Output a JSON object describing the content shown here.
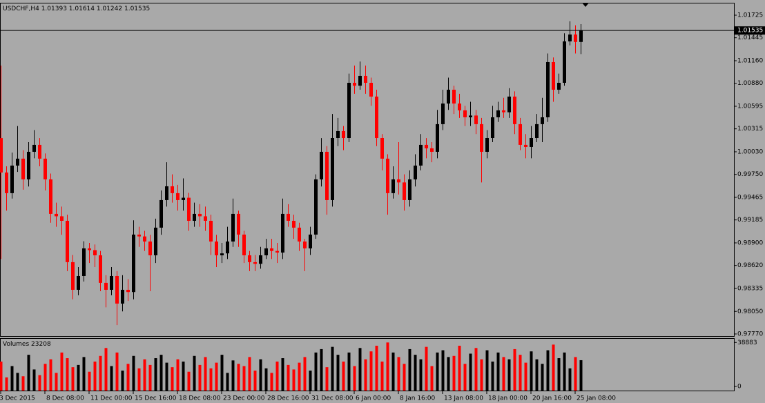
{
  "chart_data": [
    {
      "type": "candlestick",
      "title": "USDCHF,H4",
      "up_color": "#000000",
      "down_color": "#ff0000",
      "open": [
        1.002,
        0.99773,
        0.99517,
        0.99859,
        0.99945,
        0.99688,
        1.0003,
        1.00116,
        0.99945,
        0.99688,
        0.9926,
        0.9923,
        0.99174,
        0.98661,
        0.98318,
        0.98489,
        0.98832,
        0.9881,
        0.98746,
        0.98404,
        0.98318,
        0.98489,
        0.98147,
        0.98318,
        0.9829,
        0.99003,
        0.9898,
        0.98917,
        0.98746,
        0.99089,
        0.99431,
        0.99602,
        0.99517,
        0.99431,
        0.9946,
        0.99174,
        0.9926,
        0.9923,
        0.99174,
        0.98917,
        0.98746,
        0.9877,
        0.98917,
        0.9926,
        0.99003,
        0.98746,
        0.98661,
        0.9864,
        0.98746,
        0.98832,
        0.988,
        0.9878,
        0.9926,
        0.99174,
        0.99089,
        0.98917,
        0.98832,
        0.99003,
        0.99688,
        1.0003,
        0.99431,
        1.00201,
        1.00287,
        1.00201,
        1.00886,
        1.0085,
        1.00972,
        1.00886,
        1.00715,
        1.00201,
        0.99945,
        0.99517,
        0.99688,
        0.9965,
        0.99431,
        0.99688,
        0.99859,
        1.00116,
        1.00073,
        1.0003,
        1.00373,
        1.00629,
        1.008,
        1.00629,
        1.00544,
        1.00458,
        1.0048,
        1.00373,
        1.0003,
        1.00201,
        1.00458,
        1.00544,
        1.0052,
        1.00715,
        1.00373,
        1.00116,
        1.0009,
        1.00201,
        1.00373,
        1.00458,
        1.01143,
        1.008,
        1.00886,
        1.014,
        1.01485,
        1.01393
      ],
      "high": [
        1.011,
        0.9985,
        1.0002,
        1.0035,
        1.0005,
        1.0015,
        1.003,
        1.002,
        1.0001,
        0.9976,
        0.994,
        0.9935,
        0.9925,
        0.9875,
        0.986,
        0.9892,
        0.989,
        0.9888,
        0.988,
        0.985,
        0.986,
        0.9855,
        0.985,
        0.9845,
        0.9918,
        0.991,
        0.9905,
        0.99,
        0.992,
        0.9955,
        0.999,
        0.9975,
        0.9962,
        0.997,
        0.9952,
        0.994,
        0.9938,
        0.9935,
        0.9925,
        0.99,
        0.989,
        0.991,
        0.9945,
        0.993,
        0.9905,
        0.988,
        0.9875,
        0.9885,
        0.9895,
        0.9895,
        0.989,
        0.9945,
        0.9938,
        0.9925,
        0.9915,
        0.9895,
        0.991,
        0.9975,
        1.002,
        1.001,
        1.005,
        1.0045,
        1.0035,
        1.01,
        1.011,
        1.0115,
        1.011,
        1.0095,
        1.008,
        1.0025,
        1.0,
        0.9985,
        1.0015,
        0.9975,
        0.998,
        1.0,
        1.0025,
        1.002,
        1.0015,
        1.0055,
        1.008,
        1.0095,
        1.0085,
        1.0075,
        1.006,
        1.0065,
        1.0055,
        1.0045,
        1.003,
        1.006,
        1.0065,
        1.007,
        1.0082,
        1.0078,
        1.0045,
        1.0025,
        1.0035,
        1.005,
        1.007,
        1.0125,
        1.012,
        1.01,
        1.015,
        1.0165,
        1.016,
        1.01614
      ],
      "low": [
        0.987,
        0.993,
        0.9945,
        0.9978,
        0.9956,
        0.996,
        0.9995,
        0.9985,
        0.9955,
        0.9915,
        0.991,
        0.99,
        0.9855,
        0.982,
        0.9825,
        0.9842,
        0.9865,
        0.986,
        0.983,
        0.981,
        0.9825,
        0.9788,
        0.9805,
        0.9818,
        0.982,
        0.9885,
        0.988,
        0.983,
        0.9865,
        0.99,
        0.9935,
        0.994,
        0.993,
        0.993,
        0.9905,
        0.991,
        0.991,
        0.9905,
        0.9875,
        0.986,
        0.9865,
        0.987,
        0.9885,
        0.9885,
        0.9865,
        0.9855,
        0.9855,
        0.9858,
        0.987,
        0.987,
        0.9865,
        0.987,
        0.991,
        0.9895,
        0.988,
        0.9855,
        0.9875,
        0.9895,
        0.996,
        0.9925,
        0.9935,
        1.001,
        1.0005,
        1.0015,
        1.0075,
        1.008,
        1.0075,
        1.006,
        1.001,
        0.998,
        0.9925,
        0.9945,
        0.995,
        0.993,
        0.9935,
        0.996,
        0.998,
        0.9995,
        0.999,
        0.9995,
        1.003,
        1.0055,
        1.005,
        1.0045,
        1.0035,
        1.0035,
        1.0025,
        0.9965,
        0.9995,
        1.0015,
        1.004,
        1.0045,
        1.0045,
        1.0025,
        1.0005,
        0.9995,
        0.9995,
        1.0015,
        1.0015,
        1.004,
        1.0065,
        1.0075,
        1.0085,
        1.0135,
        1.0125,
        1.01242
      ],
      "close": [
        0.99773,
        0.99517,
        0.99859,
        0.99945,
        0.99688,
        1.0003,
        1.00116,
        0.99945,
        0.99688,
        0.9926,
        0.9923,
        0.99174,
        0.98661,
        0.98318,
        0.98489,
        0.98832,
        0.9881,
        0.98746,
        0.98404,
        0.98318,
        0.98489,
        0.98147,
        0.98318,
        0.9829,
        0.99003,
        0.9898,
        0.98917,
        0.98746,
        0.99089,
        0.99431,
        0.99602,
        0.99517,
        0.99431,
        0.9946,
        0.99174,
        0.9926,
        0.9923,
        0.99174,
        0.98917,
        0.98746,
        0.9877,
        0.98917,
        0.9926,
        0.99003,
        0.98746,
        0.98661,
        0.9864,
        0.98746,
        0.98832,
        0.988,
        0.9878,
        0.9926,
        0.99174,
        0.99089,
        0.98917,
        0.98832,
        0.99003,
        0.99688,
        1.0003,
        0.99431,
        1.00201,
        1.00287,
        1.00201,
        1.00886,
        1.0085,
        1.00972,
        1.00886,
        1.00715,
        1.00201,
        0.99945,
        0.99517,
        0.99688,
        0.9965,
        0.99431,
        0.99688,
        0.99859,
        1.00116,
        1.00073,
        1.0003,
        1.00373,
        1.00629,
        1.008,
        1.00629,
        1.00544,
        1.00458,
        1.0048,
        1.00373,
        1.0003,
        1.00201,
        1.00458,
        1.00544,
        1.0052,
        1.00715,
        1.00373,
        1.00116,
        1.0009,
        1.00201,
        1.00373,
        1.00458,
        1.01143,
        1.008,
        1.00886,
        1.014,
        1.01485,
        1.01393,
        1.01535
      ],
      "ylim": [
        0.97744,
        1.01879
      ],
      "yticks": [
        {
          "value": 1.01725,
          "label": "1.01725"
        },
        {
          "value": 1.01445,
          "label": "1.01445"
        },
        {
          "value": 1.0116,
          "label": "1.01160"
        },
        {
          "value": 1.0088,
          "label": "1.00880"
        },
        {
          "value": 1.00595,
          "label": "1.00595"
        },
        {
          "value": 1.00315,
          "label": "1.00315"
        },
        {
          "value": 1.0003,
          "label": "1.00030"
        },
        {
          "value": 0.9975,
          "label": "0.99750"
        },
        {
          "value": 0.99465,
          "label": "0.99465"
        },
        {
          "value": 0.99185,
          "label": "0.99185"
        },
        {
          "value": 0.989,
          "label": "0.98900"
        },
        {
          "value": 0.9862,
          "label": "0.98620"
        },
        {
          "value": 0.98335,
          "label": "0.98335"
        },
        {
          "value": 0.9805,
          "label": "0.98050"
        },
        {
          "value": 0.9777,
          "label": "0.97770"
        }
      ],
      "xticks": [
        {
          "value": 0,
          "label": "3 Dec 2015"
        },
        {
          "value": 8,
          "label": "8 Dec 08:00"
        },
        {
          "value": 16,
          "label": "11 Dec 00:00"
        },
        {
          "value": 24,
          "label": "15 Dec 16:00"
        },
        {
          "value": 32,
          "label": "18 Dec 08:00"
        },
        {
          "value": 40,
          "label": "23 Dec 00:00"
        },
        {
          "value": 48,
          "label": "28 Dec 16:00"
        },
        {
          "value": 56,
          "label": "31 Dec 08:00"
        },
        {
          "value": 64,
          "label": "6 Jan 00:00"
        },
        {
          "value": 72,
          "label": "8 Jan 16:00"
        },
        {
          "value": 80,
          "label": "13 Jan 08:00"
        },
        {
          "value": 88,
          "label": "18 Jan 00:00"
        },
        {
          "value": 96,
          "label": "20 Jan 16:00"
        },
        {
          "value": 104,
          "label": "25 Jan 08:00"
        }
      ]
    },
    {
      "type": "bar",
      "title": "Volumes",
      "up_color": "#000000",
      "down_color": "#ff0000",
      "values": [
        22000,
        8000,
        18000,
        12000,
        9000,
        28000,
        15000,
        10000,
        20000,
        24000,
        12000,
        30000,
        25000,
        17000,
        19000,
        26000,
        13000,
        22000,
        27000,
        34000,
        18000,
        30000,
        14000,
        20000,
        27000,
        16000,
        24000,
        19000,
        25000,
        28000,
        21000,
        17000,
        24000,
        22000,
        13000,
        27000,
        19000,
        26000,
        16000,
        21000,
        28000,
        12000,
        23000,
        20000,
        18000,
        26000,
        14000,
        24000,
        16000,
        12000,
        22000,
        25000,
        19000,
        15000,
        21000,
        26000,
        14000,
        30000,
        33000,
        17000,
        35000,
        28000,
        22000,
        30000,
        18000,
        34000,
        24000,
        31000,
        36000,
        22000,
        38883,
        30000,
        26000,
        20000,
        33000,
        28000,
        24000,
        35000,
        18000,
        30000,
        32000,
        26000,
        27000,
        36000,
        20000,
        29000,
        34000,
        24000,
        32000,
        22000,
        30000,
        26000,
        24000,
        33000,
        28000,
        21000,
        31000,
        24000,
        20000,
        32000,
        37000,
        25000,
        30000,
        16000,
        26000,
        23208
      ],
      "ylim": [
        0,
        41500
      ],
      "yticks": [
        0,
        38883
      ]
    }
  ]
}
